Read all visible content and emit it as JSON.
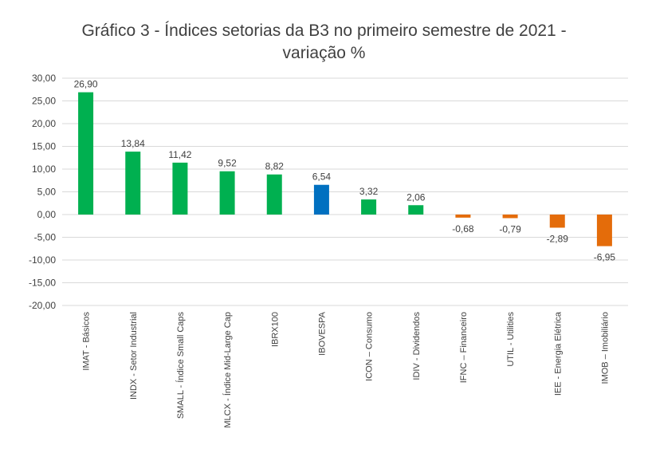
{
  "chart_data": {
    "type": "bar",
    "title": "Gráfico 3 - Índices setorias da B3 no primeiro semestre de 2021 -",
    "subtitle": "variação %",
    "xlabel": "",
    "ylabel": "",
    "ylim": [
      -20,
      30
    ],
    "yticks": [
      "30,00",
      "25,00",
      "20,00",
      "15,00",
      "10,00",
      "5,00",
      "0,00",
      "-5,00",
      "-10,00",
      "-15,00",
      "-20,00"
    ],
    "ytick_values": [
      30,
      25,
      20,
      15,
      10,
      5,
      0,
      -5,
      -10,
      -15,
      -20
    ],
    "grid": true,
    "legend": "none",
    "categories": [
      "IMAT - Básicos",
      "INDX - Setor Industrial",
      "SMALL - Índice Small Caps",
      "MLCX - Índice Mid-Large Cap",
      "IBRX100",
      "IBOVESPA",
      "ICON – Consumo",
      "IDIV - Dividendos",
      "IFNC – Financeiro",
      "UTIL - Utilities",
      "IEE - Energia Elétrica",
      "IMOB – Imobiliário"
    ],
    "values": [
      26.9,
      13.84,
      11.42,
      9.52,
      8.82,
      6.54,
      3.32,
      2.06,
      -0.68,
      -0.79,
      -2.89,
      -6.95
    ],
    "value_labels": [
      "26,90",
      "13,84",
      "11,42",
      "9,52",
      "8,82",
      "6,54",
      "3,32",
      "2,06",
      "-0,68",
      "-0,79",
      "-2,89",
      "-6,95"
    ],
    "colors": {
      "positive": "#00B050",
      "benchmark": "#0070C0",
      "negative": "#E46C0A",
      "grid": "#D9D9D9",
      "text": "#404040"
    },
    "bar_colors": [
      "#00B050",
      "#00B050",
      "#00B050",
      "#00B050",
      "#00B050",
      "#0070C0",
      "#00B050",
      "#00B050",
      "#E46C0A",
      "#E46C0A",
      "#E46C0A",
      "#E46C0A"
    ]
  }
}
